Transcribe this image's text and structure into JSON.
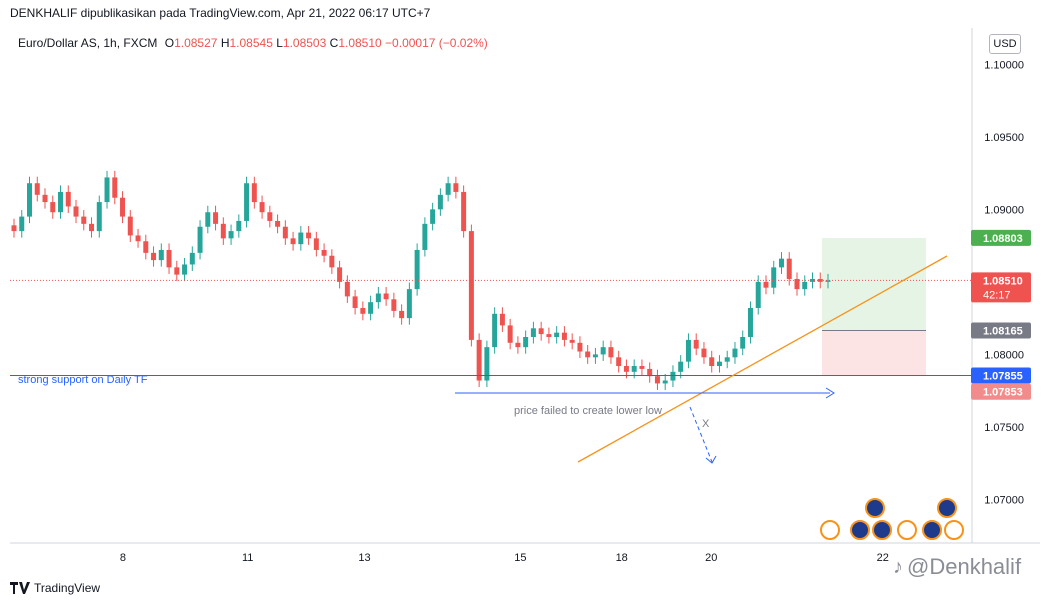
{
  "header": {
    "publish_line": "DENKHALIF dipublikasikan pada TradingView.com, Apr 21, 2022 06:17 UTC+7"
  },
  "legend": {
    "symbol": "Euro/Dollar AS, 1h, FXCM",
    "open_label": "O",
    "open": "1.08527",
    "high_label": "H",
    "high": "1.08545",
    "low_label": "L",
    "low": "1.08503",
    "close_label": "C",
    "close": "1.08510",
    "change": "−0.00017 (−0.02%)"
  },
  "currency_button": "USD",
  "footer": {
    "brand": "TradingView"
  },
  "watermark": {
    "text": "@Denkhalif"
  },
  "colors": {
    "up": "#26a69a",
    "down": "#ef5350",
    "support": "#2962ff",
    "trend": "#f7931a",
    "target_zone": "#e6f4e6",
    "stop_zone": "#fce4e4"
  },
  "chart_data": {
    "type": "candlestick",
    "y_axis": {
      "min": 1.067,
      "max": 1.1025,
      "ticks": [
        "1.10000",
        "1.09500",
        "1.09000",
        "1.08500",
        "1.08000",
        "1.07500",
        "1.07000"
      ],
      "tick_values": [
        1.1,
        1.095,
        1.09,
        1.085,
        1.08,
        1.075,
        1.07
      ]
    },
    "x_axis": {
      "labels": [
        "8",
        "11",
        "13",
        "15",
        "18",
        "20",
        "22"
      ]
    },
    "x_axis_positions": [
      0.145,
      0.305,
      0.455,
      0.655,
      0.785,
      0.9,
      1.12
    ],
    "series_close": [
      1.0885,
      1.0895,
      1.0918,
      1.091,
      1.0905,
      1.0898,
      1.0912,
      1.0902,
      1.0895,
      1.089,
      1.0885,
      1.0905,
      1.0922,
      1.0908,
      1.0895,
      1.0882,
      1.0878,
      1.087,
      1.0865,
      1.0872,
      1.086,
      1.0855,
      1.0862,
      1.087,
      1.0888,
      1.0898,
      1.089,
      1.088,
      1.0885,
      1.0892,
      1.0918,
      1.0905,
      1.0898,
      1.0892,
      1.0888,
      1.088,
      1.0876,
      1.0884,
      1.088,
      1.0872,
      1.0868,
      1.086,
      1.085,
      1.084,
      1.0832,
      1.0828,
      1.0836,
      1.0842,
      1.0838,
      1.083,
      1.0825,
      1.0845,
      1.0872,
      1.089,
      1.09,
      1.091,
      1.0918,
      1.0912,
      1.0885,
      1.081,
      1.0782,
      1.0805,
      1.0828,
      1.082,
      1.0808,
      1.0805,
      1.0812,
      1.0818,
      1.0814,
      1.0812,
      1.0815,
      1.081,
      1.0808,
      1.0802,
      1.0798,
      1.08,
      1.0805,
      1.0798,
      1.0792,
      1.0788,
      1.0792,
      1.079,
      1.0785,
      1.078,
      1.0782,
      1.0788,
      1.0795,
      1.081,
      1.0804,
      1.0798,
      1.0792,
      1.0795,
      1.0798,
      1.0804,
      1.0812,
      1.0832,
      1.085,
      1.0846,
      1.086,
      1.0866,
      1.0852,
      1.0845,
      1.085,
      1.0852,
      1.085,
      1.0851
    ],
    "annotations": [
      {
        "text": "strong support on Daily TF",
        "price": 1.07855
      },
      {
        "text": "price failed to create lower low"
      },
      {
        "text": "X"
      }
    ],
    "price_labels": [
      {
        "value": "1.08803",
        "price": 1.08803,
        "bg": "#4caf50",
        "fg": "#ffffff",
        "kind": "take-profit"
      },
      {
        "value": "1.08510",
        "sub": "42:17",
        "price": 1.0851,
        "bg": "#ef5350",
        "fg": "#ffffff",
        "kind": "last-price"
      },
      {
        "value": "1.08165",
        "price": 1.08165,
        "bg": "#787b86",
        "fg": "#ffffff",
        "kind": "entry"
      },
      {
        "value": "1.07855",
        "price": 1.07855,
        "bg": "#2962ff",
        "fg": "#ffffff",
        "kind": "support"
      },
      {
        "value": "1.07853",
        "price": 1.07853,
        "bg": "#f28b8b",
        "fg": "#ffffff",
        "kind": "stop-loss"
      }
    ]
  }
}
